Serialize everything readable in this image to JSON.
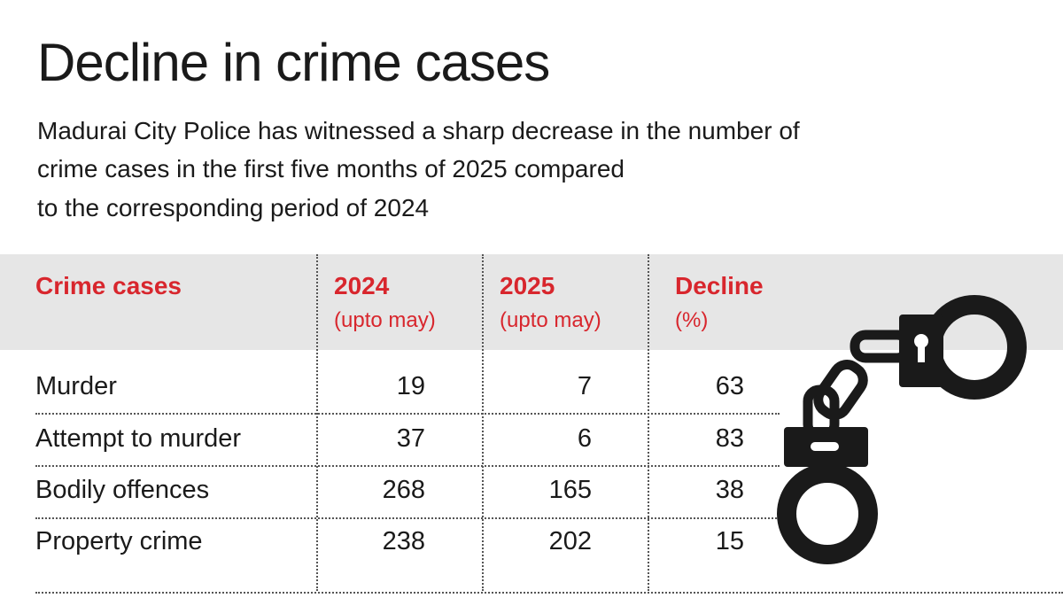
{
  "header": {
    "title": "Decline in crime cases",
    "subtitle": [
      "Madurai City Police has witnessed a sharp decrease in the number of",
      "crime cases in the first five months of 2025 compared",
      "to the corresponding period of 2024"
    ]
  },
  "table": {
    "columns": [
      {
        "label": "Crime cases"
      },
      {
        "label": "2024",
        "sub": "(upto may)"
      },
      {
        "label": "2025",
        "sub": "(upto may)"
      },
      {
        "label": "Decline",
        "sub": "(%)"
      }
    ],
    "rows": [
      [
        "Murder",
        19,
        7,
        63
      ],
      [
        "Attempt to murder",
        37,
        6,
        83
      ],
      [
        "Bodily offences",
        268,
        165,
        38
      ],
      [
        "Property crime",
        238,
        202,
        15
      ]
    ]
  }
}
